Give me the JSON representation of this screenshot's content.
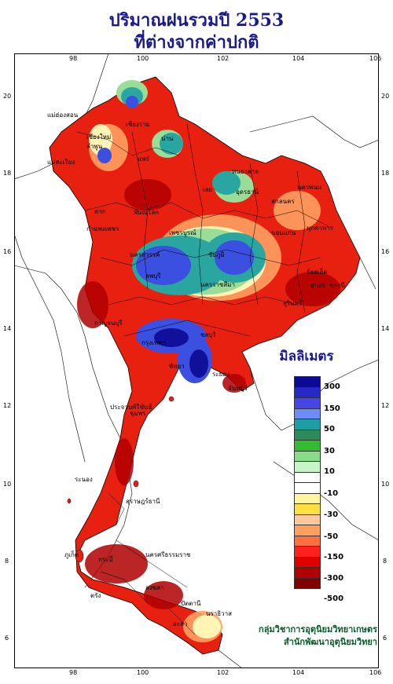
{
  "title": {
    "line1": "ปริมาณฝนรวมปี  2553",
    "line2": "ที่ต่างจากค่าปกติ"
  },
  "axis": {
    "lon_top": [
      "98",
      "100",
      "102",
      "104",
      "106"
    ],
    "lon_bottom": [
      "98",
      "100",
      "102",
      "104",
      "106"
    ],
    "lat_left": [
      "20",
      "18",
      "16",
      "14",
      "12",
      "10",
      "8",
      "6"
    ],
    "lat_right": [
      "20",
      "18",
      "16",
      "14",
      "12",
      "10",
      "8",
      "6"
    ]
  },
  "legend": {
    "title": "มิลลิเมตร",
    "labels": [
      "300",
      "150",
      "50",
      "30",
      "10",
      "-10",
      "-30",
      "-50",
      "-150",
      "-300",
      "-500"
    ],
    "colors": [
      "#0a0a96",
      "#2828c8",
      "#4646e6",
      "#6e8cf5",
      "#1e9ea0",
      "#2e8b57",
      "#33bb33",
      "#88dd88",
      "#c8f5c8",
      "#ffffff",
      "#ffffff",
      "#fff5a0",
      "#ffe040",
      "#ffc8a0",
      "#ffa060",
      "#ff7040",
      "#ff2020",
      "#e00000",
      "#b00000",
      "#800000"
    ]
  },
  "map_colors": {
    "sea": "#ffffff",
    "deficit_strong": "#b00000",
    "deficit": "#e82010",
    "deficit_light": "#ff8040",
    "neutral": "#ffffc0",
    "surplus_light": "#99dd99",
    "surplus": "#2aa6a0",
    "surplus_strong": "#3b4fe0",
    "surplus_max": "#10109a"
  },
  "places": [
    "แม่ฮ่องสอน",
    "เชียงใหม่",
    "ลำพูน",
    "เชียงราย",
    "น่าน",
    "แพร่",
    "แม่สะเรียง",
    "หนองคาย",
    "เลย",
    "อุดรธานี",
    "สกลนคร",
    "นครพนม",
    "มุกดาหาร",
    "ตาก",
    "พิษณุโลก",
    "กำแพงเพชร",
    "เพชรบูรณ์",
    "ขอนแก่น",
    "นครสวรรค์",
    "ชัยภูมิ",
    "ร้อยเอ็ด",
    "อุบลราชธานี",
    "ลพบุรี",
    "นครราชสีมา",
    "สุรินทร์",
    "กาญจนบุรี",
    "กรุงเทพฯ",
    "ชลบุรี",
    "พัทยา",
    "ระยอง",
    "จันทบุรี",
    "ประจวบคีรีขันธ์",
    "ชุมพร",
    "ระนอง",
    "สุราษฎร์ธานี",
    "ภูเก็ต",
    "นครศรีธรรมราช",
    "กระบี่",
    "ตรัง",
    "สงขลา",
    "ปัตตานี",
    "นราธิวาส",
    "ยะลา"
  ],
  "credit": {
    "line1": "กลุ่มวิชาการอุตุนิยมวิทยาเกษตร",
    "line2": "สำนักพัฒนาอุตุนิยมวิทยา"
  }
}
